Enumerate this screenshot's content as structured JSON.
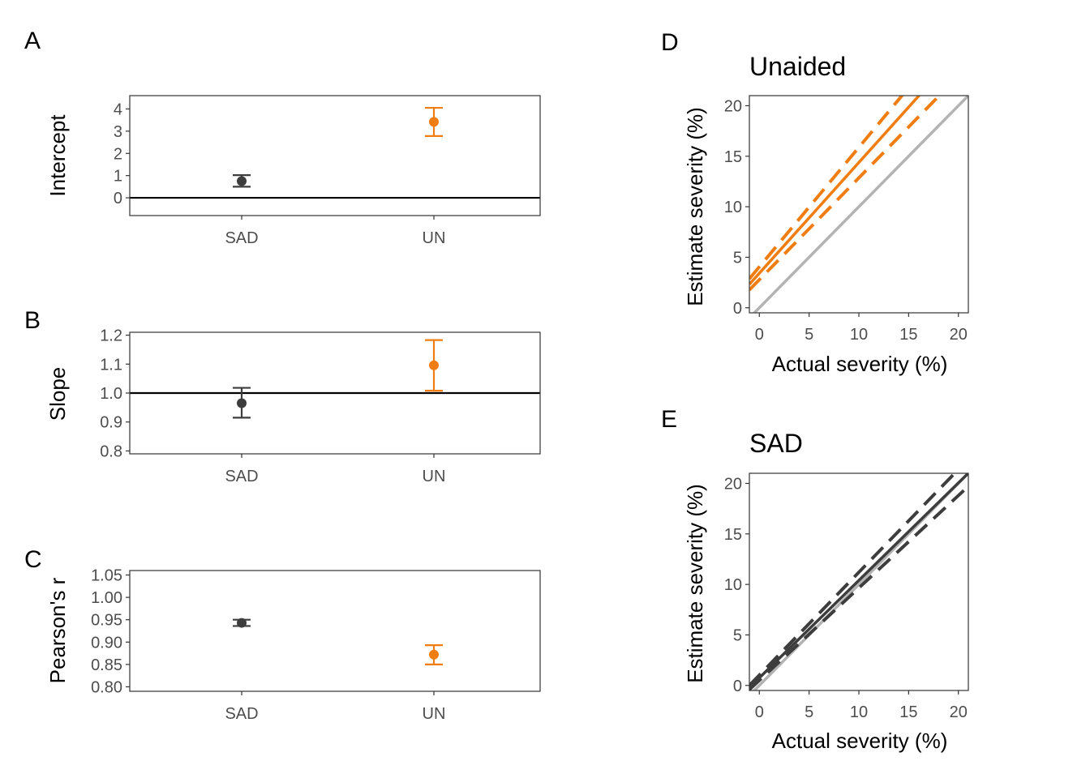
{
  "colors": {
    "SAD": "#3d3d3d",
    "UN": "#f07d12",
    "reference": "#b3b3b3",
    "hline": "#000000"
  },
  "chart_data": [
    {
      "panel": "A",
      "type": "scatter",
      "ylabel": "Intercept",
      "categories": [
        "SAD",
        "UN"
      ],
      "points": [
        {
          "group": "SAD",
          "value": 0.75,
          "lower": 0.5,
          "upper": 1.02
        },
        {
          "group": "UN",
          "value": 3.42,
          "lower": 2.78,
          "upper": 4.05
        }
      ],
      "ylim": [
        -0.8,
        4.6
      ],
      "yticks": [
        0,
        1,
        2,
        3,
        4
      ],
      "hline": 0
    },
    {
      "panel": "B",
      "type": "scatter",
      "ylabel": "Slope",
      "categories": [
        "SAD",
        "UN"
      ],
      "points": [
        {
          "group": "SAD",
          "value": 0.965,
          "lower": 0.915,
          "upper": 1.018
        },
        {
          "group": "UN",
          "value": 1.096,
          "lower": 1.008,
          "upper": 1.183
        }
      ],
      "ylim": [
        0.79,
        1.21
      ],
      "yticks": [
        "0.8",
        "0.9",
        "1.0",
        "1.1",
        "1.2"
      ],
      "hline": 1
    },
    {
      "panel": "C",
      "type": "scatter",
      "ylabel": "Pearson's r",
      "categories": [
        "SAD",
        "UN"
      ],
      "points": [
        {
          "group": "SAD",
          "value": 0.943,
          "lower": 0.936,
          "upper": 0.95
        },
        {
          "group": "UN",
          "value": 0.872,
          "lower": 0.85,
          "upper": 0.893
        }
      ],
      "ylim": [
        0.79,
        1.06
      ],
      "yticks": [
        "0.80",
        "0.85",
        "0.90",
        "0.95",
        "1.00",
        "1.05"
      ]
    },
    {
      "panel": "D",
      "type": "line",
      "title": "Unaided",
      "xlabel": "Actual severity (%)",
      "ylabel": "Estimate severity (%)",
      "xlim": [
        -1,
        21
      ],
      "ylim": [
        -0.5,
        21
      ],
      "xticks": [
        0,
        5,
        10,
        15,
        20
      ],
      "yticks": [
        0,
        5,
        10,
        15,
        20
      ],
      "fit": {
        "intercept": 3.42,
        "slope": 1.096
      },
      "ci_lower": {
        "intercept": 2.78,
        "slope": 1.008
      },
      "ci_upper": {
        "intercept": 4.05,
        "slope": 1.183
      },
      "reference_line": {
        "intercept": 0,
        "slope": 1
      }
    },
    {
      "panel": "E",
      "type": "line",
      "title": "SAD",
      "xlabel": "Actual severity (%)",
      "ylabel": "Estimate severity (%)",
      "xlim": [
        -1,
        21
      ],
      "ylim": [
        -0.5,
        21
      ],
      "xticks": [
        0,
        5,
        10,
        15,
        20
      ],
      "yticks": [
        0,
        5,
        10,
        15,
        20
      ],
      "fit": {
        "intercept": 0.75,
        "slope": 0.965
      },
      "ci_lower": {
        "intercept": 0.5,
        "slope": 0.915
      },
      "ci_upper": {
        "intercept": 1.02,
        "slope": 1.018
      },
      "reference_line": {
        "intercept": 0,
        "slope": 1
      }
    }
  ]
}
